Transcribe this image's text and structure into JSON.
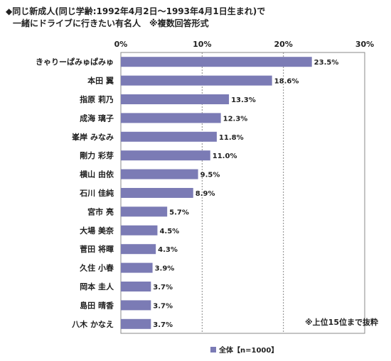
{
  "chart_data": {
    "type": "bar",
    "orientation": "horizontal",
    "title_line1": "◆同じ新成人(同じ学齢:1992年4月2日～1993年4月1日生まれ)で",
    "title_line2": "一緒にドライブに行きたい有名人　※複数回答形式",
    "categories": [
      "きゃりーぱみゅぱみゅ",
      "本田 翼",
      "指原 莉乃",
      "成海 璃子",
      "峯岸 みなみ",
      "剛力 彩芽",
      "横山 由依",
      "石川 佳純",
      "宮市 亮",
      "大場 美奈",
      "菅田 将暉",
      "久住 小春",
      "岡本 圭人",
      "島田 晴香",
      "八木 かなえ"
    ],
    "values": [
      23.5,
      18.6,
      13.3,
      12.3,
      11.8,
      11.0,
      9.5,
      8.9,
      5.7,
      4.5,
      4.3,
      3.9,
      3.7,
      3.7,
      3.7
    ],
    "value_labels": [
      "23.5%",
      "18.6%",
      "13.3%",
      "12.3%",
      "11.8%",
      "11.0%",
      "9.5%",
      "8.9%",
      "5.7%",
      "4.5%",
      "4.3%",
      "3.9%",
      "3.7%",
      "3.7%",
      "3.7%"
    ],
    "xlim": [
      0,
      30
    ],
    "xticks": [
      0,
      10,
      20,
      30
    ],
    "xtick_labels": [
      "0%",
      "10%",
      "20%",
      "30%"
    ],
    "grid": "vertical-dashed",
    "bar_color": "#7b7bb5",
    "note": "※上位15位まで抜粋",
    "legend_label": "全体【n=1000】",
    "legend_position": "bottom"
  }
}
